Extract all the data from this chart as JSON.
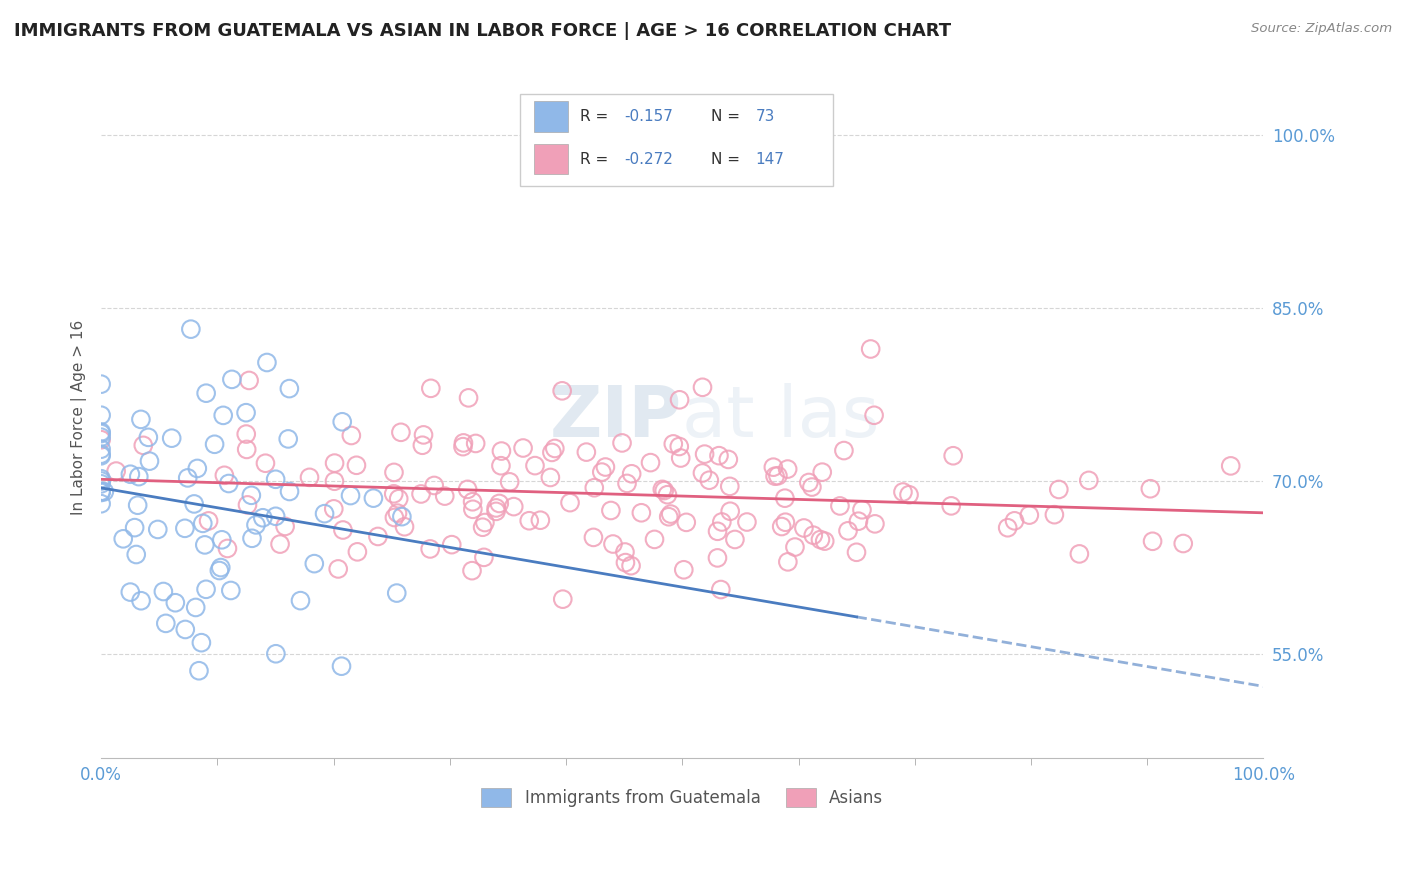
{
  "title": "IMMIGRANTS FROM GUATEMALA VS ASIAN IN LABOR FORCE | AGE > 16 CORRELATION CHART",
  "source": "Source: ZipAtlas.com",
  "ylabel": "In Labor Force | Age > 16",
  "xtick_left": "0.0%",
  "xtick_right": "100.0%",
  "ytick_labels": [
    "55.0%",
    "70.0%",
    "85.0%",
    "100.0%"
  ],
  "yticks": [
    0.55,
    0.7,
    0.85,
    1.0
  ],
  "xlim": [
    0.0,
    1.0
  ],
  "ylim": [
    0.46,
    1.05
  ],
  "s1_name": "Immigrants from Guatemala",
  "s1_color": "#90b8e8",
  "s1_R": -0.157,
  "s1_N": 73,
  "s1_seed": 7,
  "s2_name": "Asians",
  "s2_color": "#f0a0b8",
  "s2_R": -0.272,
  "s2_N": 147,
  "s2_seed": 13,
  "trend1_color": "#4a7cc0",
  "trend2_color": "#e06080",
  "legend_text_color": "#4a7cc0",
  "legend_label1": "R =  -0.157   N =   73",
  "legend_label2": "R =  -0.272   N = 147",
  "watermark": "ZIPat las",
  "bg_color": "#ffffff",
  "grid_color": "#cccccc",
  "title_color": "#222222",
  "axis_tick_color": "#5b9bd5",
  "ylabel_color": "#555555"
}
